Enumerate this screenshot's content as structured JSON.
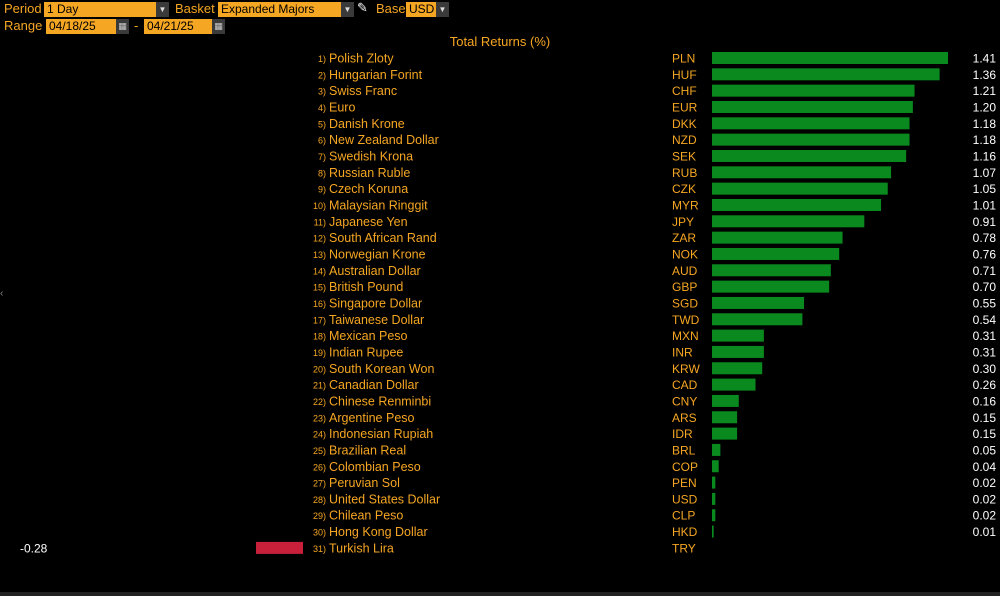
{
  "toolbar": {
    "period_label": "Period",
    "period_value": "1 Day",
    "basket_label": "Basket",
    "basket_value": "Expanded Majors",
    "base_label": "Base",
    "base_value": "USD",
    "range_label": "Range",
    "range_start": "04/18/25",
    "range_sep": "-",
    "range_end": "04/21/25"
  },
  "colors": {
    "positive": "#0a8a1e",
    "negative": "#c8203a",
    "text": "#f5a623",
    "value_text": "#ffffff"
  },
  "chart_data": {
    "type": "bar",
    "orientation": "horizontal",
    "title": "Total Returns (%)",
    "categories": [
      "Polish Zloty",
      "Hungarian Forint",
      "Swiss Franc",
      "Euro",
      "Danish Krone",
      "New Zealand Dollar",
      "Swedish Krona",
      "Russian Ruble",
      "Czech Koruna",
      "Malaysian Ringgit",
      "Japanese Yen",
      "South African Rand",
      "Norwegian Krone",
      "Australian Dollar",
      "British Pound",
      "Singapore Dollar",
      "Taiwanese Dollar",
      "Mexican Peso",
      "Indian Rupee",
      "South Korean Won",
      "Canadian Dollar",
      "Chinese Renminbi",
      "Argentine Peso",
      "Indonesian Rupiah",
      "Brazilian Real",
      "Colombian Peso",
      "Peruvian Sol",
      "United States Dollar",
      "Chilean Peso",
      "Hong Kong Dollar",
      "Turkish Lira"
    ],
    "codes": [
      "PLN",
      "HUF",
      "CHF",
      "EUR",
      "DKK",
      "NZD",
      "SEK",
      "RUB",
      "CZK",
      "MYR",
      "JPY",
      "ZAR",
      "NOK",
      "AUD",
      "GBP",
      "SGD",
      "TWD",
      "MXN",
      "INR",
      "KRW",
      "CAD",
      "CNY",
      "ARS",
      "IDR",
      "BRL",
      "COP",
      "PEN",
      "USD",
      "CLP",
      "HKD",
      "TRY"
    ],
    "values": [
      1.41,
      1.36,
      1.21,
      1.2,
      1.18,
      1.18,
      1.16,
      1.07,
      1.05,
      1.01,
      0.91,
      0.78,
      0.76,
      0.71,
      0.7,
      0.55,
      0.54,
      0.31,
      0.31,
      0.3,
      0.26,
      0.16,
      0.15,
      0.15,
      0.05,
      0.04,
      0.02,
      0.02,
      0.02,
      0.01,
      -0.28
    ],
    "value_labels": [
      "1.41",
      "1.36",
      "1.21",
      "1.20",
      "1.18",
      "1.18",
      "1.16",
      "1.07",
      "1.05",
      "1.01",
      "0.91",
      "0.78",
      "0.76",
      "0.71",
      "0.70",
      "0.55",
      "0.54",
      "0.31",
      "0.31",
      "0.30",
      "0.26",
      "0.16",
      "0.15",
      "0.15",
      "0.05",
      "0.04",
      "0.02",
      "0.02",
      "0.02",
      "0.01",
      "-0.28"
    ],
    "ranks": [
      "1)",
      "2)",
      "3)",
      "4)",
      "5)",
      "6)",
      "7)",
      "8)",
      "9)",
      "10)",
      "11)",
      "12)",
      "13)",
      "14)",
      "15)",
      "16)",
      "17)",
      "18)",
      "19)",
      "20)",
      "21)",
      "22)",
      "23)",
      "24)",
      "25)",
      "26)",
      "27)",
      "28)",
      "29)",
      "30)",
      "31)"
    ],
    "grid": false
  }
}
